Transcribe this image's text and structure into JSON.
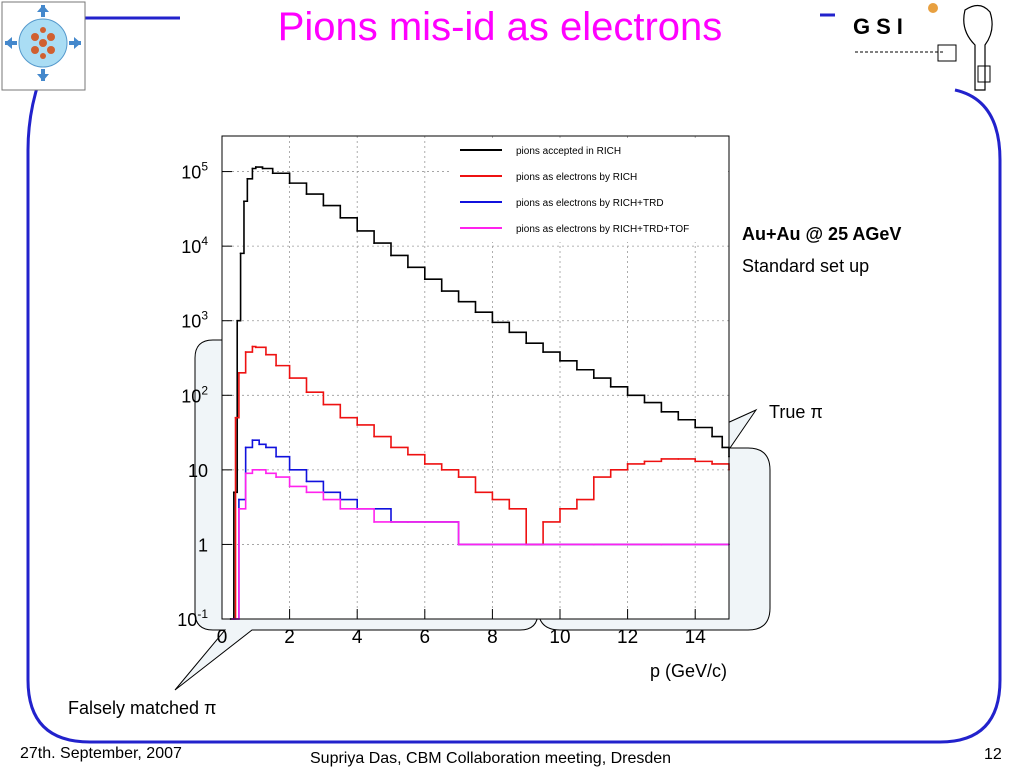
{
  "slide": {
    "title": "Pions mis-id as electrons",
    "annotation_setup_bold": "Au+Au @ 25 AGeV",
    "annotation_setup": "Standard set up",
    "callout_true": "True π",
    "callout_false": "Falsely matched π",
    "accent_color": "#2222cc",
    "title_color": "#ff00ff"
  },
  "footer": {
    "date": "27th. September, 2007",
    "author": "Supriya Das, CBM Collaboration meeting, Dresden",
    "page": "12"
  },
  "logos": {
    "left": "cbm-logo",
    "right_text": "GSI"
  },
  "chart_data": {
    "type": "line",
    "xlabel": "p (GeV/c)",
    "ylabel": "",
    "xlim": [
      0,
      15
    ],
    "ylim": [
      0.1,
      300000
    ],
    "yscale": "log",
    "grid": true,
    "legend_position": "top-right",
    "x_ticks": [
      0,
      2,
      4,
      6,
      8,
      10,
      12,
      14
    ],
    "y_ticks": [
      {
        "value": 0.1,
        "base": "10",
        "exp": "-1"
      },
      {
        "value": 1,
        "base": "1",
        "exp": ""
      },
      {
        "value": 10,
        "base": "10",
        "exp": ""
      },
      {
        "value": 100,
        "base": "10",
        "exp": "2"
      },
      {
        "value": 1000,
        "base": "10",
        "exp": "3"
      },
      {
        "value": 10000,
        "base": "10",
        "exp": "4"
      },
      {
        "value": 100000,
        "base": "10",
        "exp": "5"
      }
    ],
    "series": [
      {
        "name": "pions accepted in RICH",
        "color": "#000000",
        "x": [
          0.25,
          0.35,
          0.45,
          0.55,
          0.65,
          0.75,
          0.9,
          1.0,
          1.2,
          1.5,
          2.0,
          2.5,
          3.0,
          3.5,
          4.0,
          4.5,
          5.0,
          5.5,
          6.0,
          6.5,
          7.0,
          7.5,
          8.0,
          8.5,
          9.0,
          9.5,
          10.0,
          10.5,
          11.0,
          11.5,
          12.0,
          12.5,
          13.0,
          13.5,
          14.0,
          14.5,
          14.8,
          15.0
        ],
        "y": [
          0.1,
          5,
          1000,
          8000,
          40000,
          80000,
          110000,
          115000,
          110000,
          95000,
          70000,
          50000,
          35000,
          24000,
          16000,
          11000,
          7500,
          5200,
          3600,
          2500,
          1800,
          1300,
          950,
          700,
          500,
          380,
          290,
          220,
          170,
          130,
          100,
          80,
          60,
          47,
          37,
          28,
          20,
          15
        ]
      },
      {
        "name": "pions as electrons by RICH",
        "color": "#ee1111",
        "x": [
          0.3,
          0.4,
          0.5,
          0.7,
          0.9,
          1.0,
          1.3,
          1.6,
          2.0,
          2.5,
          3.0,
          3.5,
          4.0,
          4.5,
          5.0,
          5.5,
          6.0,
          6.5,
          7.0,
          7.5,
          8.0,
          8.5,
          9.0,
          9.5,
          10.0,
          10.5,
          11.0,
          11.5,
          12.0,
          12.5,
          13.0,
          13.5,
          14.0,
          14.5,
          15.0
        ],
        "y": [
          0.1,
          50,
          200,
          380,
          450,
          440,
          350,
          250,
          170,
          110,
          75,
          50,
          40,
          28,
          20,
          16,
          12,
          10,
          8,
          5,
          4,
          3,
          1,
          2,
          3,
          4,
          8,
          10,
          12,
          13,
          14,
          14,
          13,
          12,
          10
        ]
      },
      {
        "name": "pions as electrons by RICH+TRD",
        "color": "#1111dd",
        "x": [
          0.3,
          0.5,
          0.7,
          0.9,
          1.1,
          1.3,
          1.6,
          2.0,
          2.5,
          3.0,
          3.5,
          4.0,
          4.5,
          5.0,
          5.5,
          6.0,
          7.0,
          8.0,
          9.0,
          10.0,
          11.0,
          12.0,
          13.0,
          14.0,
          15.0
        ],
        "y": [
          0.1,
          4,
          20,
          25,
          22,
          20,
          15,
          10,
          7,
          5,
          4,
          3,
          3,
          2,
          2,
          2,
          1,
          1,
          1,
          1,
          1,
          1,
          1,
          1,
          1
        ]
      },
      {
        "name": "pions as electrons by RICH+TRD+TOF",
        "color": "#ff22ee",
        "x": [
          0.3,
          0.5,
          0.7,
          0.9,
          1.1,
          1.3,
          1.6,
          2.0,
          2.5,
          3.0,
          3.5,
          4.0,
          4.5,
          5.0,
          5.5,
          6.0,
          7.0,
          8.0,
          9.0,
          10.0,
          11.0,
          12.0,
          13.0,
          14.0,
          15.0
        ],
        "y": [
          0.1,
          3,
          9,
          10,
          10,
          9,
          8,
          6,
          5,
          4,
          3,
          3,
          2,
          2,
          2,
          2,
          1,
          1,
          1,
          1,
          1,
          1,
          1,
          1,
          1
        ]
      }
    ]
  }
}
